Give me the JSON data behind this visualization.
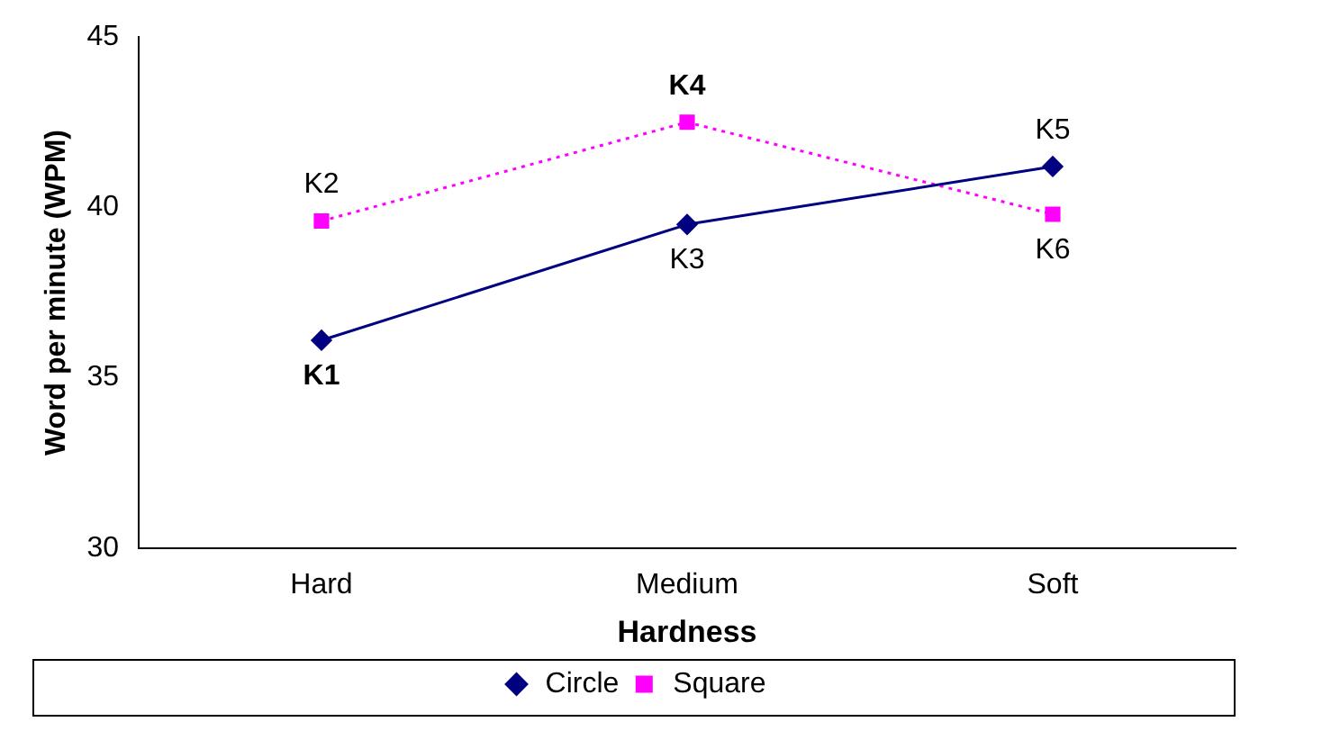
{
  "chart_data": {
    "type": "line",
    "xlabel": "Hardness",
    "ylabel": "Word per minute (WPM)",
    "categories": [
      "Hard",
      "Medium",
      "Soft"
    ],
    "series": [
      {
        "name": "Circle",
        "color": "#000080",
        "values": [
          36.1,
          39.5,
          41.2
        ],
        "marker": "diamond",
        "line_style": "solid"
      },
      {
        "name": "Square",
        "color": "#ff00ff",
        "values": [
          39.6,
          42.5,
          39.8
        ],
        "marker": "square",
        "line_style": "dotted"
      }
    ],
    "ylim": [
      30,
      45
    ],
    "yticks": [
      30,
      35,
      40,
      45
    ],
    "grid": false,
    "legend": "bottom",
    "annotations": [
      {
        "text": "K1",
        "x": "Hard",
        "y": 36.1
      },
      {
        "text": "K2",
        "x": "Hard",
        "y": 39.6
      },
      {
        "text": "K3",
        "x": "Medium",
        "y": 39.5
      },
      {
        "text": "K4",
        "x": "Medium",
        "y": 42.5
      },
      {
        "text": "K5",
        "x": "Soft",
        "y": 41.2
      },
      {
        "text": "K6",
        "x": "Soft",
        "y": 39.8
      }
    ]
  }
}
